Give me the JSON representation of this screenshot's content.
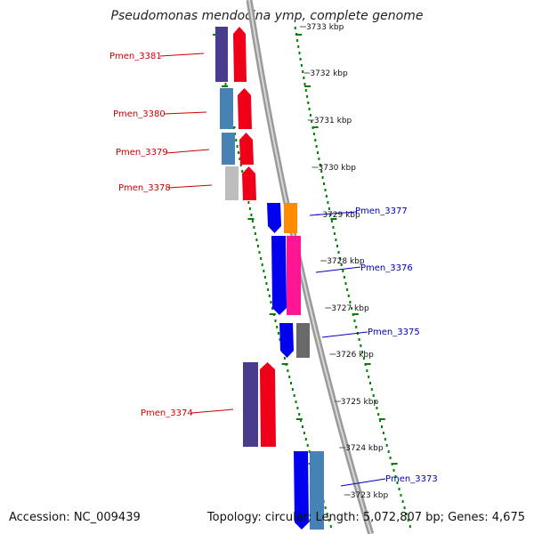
{
  "title": "Pseudomonas mendocina ymp, complete genome",
  "footer": {
    "accession": "Accession: NC_009439",
    "topology": "Topology: circular; Length: 5,072,807 bp; Genes: 4,675"
  },
  "colors": {
    "left_label": "#cc0000",
    "right_label": "#0000bb",
    "gc_track": "#008000",
    "backbone": "#888888"
  },
  "scale": {
    "unit": "kbp",
    "ticks": [
      {
        "kbp": 3733,
        "label": "3733 kbp"
      },
      {
        "kbp": 3732,
        "label": "3732 kbp"
      },
      {
        "kbp": 3731,
        "label": "3731 kbp"
      },
      {
        "kbp": 3730,
        "label": "3730 kbp"
      },
      {
        "kbp": 3729,
        "label": "3729 kbp"
      },
      {
        "kbp": 3728,
        "label": "3728 kbp"
      },
      {
        "kbp": 3727,
        "label": "3727 kbp"
      },
      {
        "kbp": 3726,
        "label": "3726 kbp"
      },
      {
        "kbp": 3725,
        "label": "3725 kbp"
      },
      {
        "kbp": 3724,
        "label": "3724 kbp"
      },
      {
        "kbp": 3723,
        "label": "3723 kbp"
      }
    ]
  },
  "gene_labels": [
    {
      "name": "Pmen_3381",
      "side": "left"
    },
    {
      "name": "Pmen_3380",
      "side": "left"
    },
    {
      "name": "Pmen_3379",
      "side": "left"
    },
    {
      "name": "Pmen_3378",
      "side": "left"
    },
    {
      "name": "Pmen_3377",
      "side": "right"
    },
    {
      "name": "Pmen_3376",
      "side": "right"
    },
    {
      "name": "Pmen_3375",
      "side": "right"
    },
    {
      "name": "Pmen_3374",
      "side": "left"
    },
    {
      "name": "Pmen_3373",
      "side": "right"
    }
  ],
  "genes": [
    {
      "name": "Pmen_3381",
      "color": "#f00018"
    },
    {
      "name": "Pmen_3380",
      "color": "#f00018"
    },
    {
      "name": "Pmen_3379",
      "color": "#f00018"
    },
    {
      "name": "Pmen_3378",
      "color": "#f00018"
    },
    {
      "name": "Pmen_3377",
      "color": "#0000ee"
    },
    {
      "name": "Pmen_3376",
      "color": "#0000ee"
    },
    {
      "name": "Pmen_3375",
      "color": "#0000ee"
    },
    {
      "name": "Pmen_3374",
      "color": "#f00018"
    },
    {
      "name": "Pmen_3373",
      "color": "#0000ee"
    }
  ],
  "cog_blocks": [
    {
      "gene": "Pmen_3381",
      "color": "#4a3c8c"
    },
    {
      "gene": "Pmen_3380",
      "color": "#4682b4"
    },
    {
      "gene": "Pmen_3379",
      "color": "#4682b4"
    },
    {
      "gene": "Pmen_3378",
      "color": "#bdbdbd"
    },
    {
      "gene": "Pmen_3377",
      "color": "#ff8c00"
    },
    {
      "gene": "Pmen_3376",
      "color": "#ff1493"
    },
    {
      "gene": "Pmen_3375",
      "color": "#696969"
    },
    {
      "gene": "Pmen_3374",
      "color": "#4a3c8c"
    },
    {
      "gene": "Pmen_3373",
      "color": "#4682b4"
    }
  ]
}
